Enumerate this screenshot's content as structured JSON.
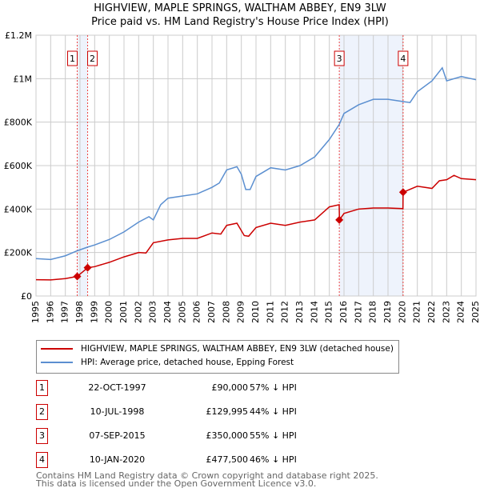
{
  "title": "HIGHVIEW, MAPLE SPRINGS, WALTHAM ABBEY, EN9 3LW",
  "subtitle": "Price paid vs. HM Land Registry's House Price Index (HPI)",
  "chart_data": {
    "type": "line",
    "xlim": [
      1995,
      2025
    ],
    "ylim": [
      0,
      1200000
    ],
    "y_ticks": [
      {
        "v": 0,
        "label": "£0"
      },
      {
        "v": 200000,
        "label": "£200K"
      },
      {
        "v": 400000,
        "label": "£400K"
      },
      {
        "v": 600000,
        "label": "£600K"
      },
      {
        "v": 800000,
        "label": "£800K"
      },
      {
        "v": 1000000,
        "label": "£1M"
      },
      {
        "v": 1200000,
        "label": "£1.2M"
      }
    ],
    "x_ticks": [
      "1995",
      "1996",
      "1997",
      "1998",
      "1999",
      "2000",
      "2001",
      "2002",
      "2003",
      "2004",
      "2005",
      "2006",
      "2007",
      "2008",
      "2009",
      "2010",
      "2011",
      "2012",
      "2013",
      "2014",
      "2015",
      "2016",
      "2017",
      "2018",
      "2019",
      "2020",
      "2021",
      "2022",
      "2023",
      "2024",
      "2025"
    ],
    "colors": {
      "property": "#cc0000",
      "hpi": "#5b8fd0",
      "shade": "#eef3fc"
    },
    "series": [
      {
        "name": "HIGHVIEW, MAPLE SPRINGS, WALTHAM ABBEY, EN9 3LW (detached house)",
        "color": "#cc0000",
        "x": [
          1995,
          1996,
          1997,
          1997.81,
          1998.52,
          1999,
          2000,
          2001,
          2002,
          2002.5,
          2003,
          2004,
          2005,
          2006,
          2007,
          2007.6,
          2008,
          2008.7,
          2009.2,
          2009.5,
          2010,
          2011,
          2012,
          2013,
          2014,
          2015,
          2015.67,
          2015.69,
          2016,
          2017,
          2018,
          2019,
          2020.02,
          2020.03,
          2021,
          2022,
          2022.5,
          2023,
          2023.5,
          2024,
          2025
        ],
        "y": [
          75000,
          74000,
          80000,
          90000,
          129995,
          135000,
          155000,
          180000,
          200000,
          198000,
          245000,
          258000,
          265000,
          265000,
          290000,
          285000,
          325000,
          335000,
          278000,
          275000,
          315000,
          335000,
          325000,
          340000,
          350000,
          410000,
          420000,
          350000,
          380000,
          400000,
          405000,
          405000,
          402000,
          477500,
          505000,
          495000,
          530000,
          535000,
          555000,
          540000,
          535000
        ]
      },
      {
        "name": "HPI: Average price, detached house, Epping Forest",
        "color": "#5b8fd0",
        "x": [
          1995,
          1996,
          1997,
          1997.81,
          1998.52,
          1999,
          2000,
          2001,
          2002,
          2002.7,
          2003,
          2003.5,
          2004,
          2005,
          2006,
          2007,
          2007.5,
          2008,
          2008.7,
          2009,
          2009.3,
          2009.6,
          2010,
          2011,
          2012,
          2013,
          2014,
          2015,
          2015.68,
          2016,
          2017,
          2018,
          2019,
          2020,
          2020.5,
          2021,
          2022,
          2022.7,
          2023,
          2024,
          2025
        ],
        "y": [
          172000,
          168000,
          185000,
          208000,
          225000,
          235000,
          260000,
          295000,
          340000,
          365000,
          350000,
          420000,
          450000,
          460000,
          470000,
          500000,
          520000,
          580000,
          595000,
          560000,
          490000,
          490000,
          550000,
          590000,
          580000,
          600000,
          640000,
          720000,
          790000,
          840000,
          880000,
          905000,
          905000,
          895000,
          890000,
          940000,
          990000,
          1050000,
          990000,
          1010000,
          995000
        ]
      }
    ],
    "shaded_ranges": [
      [
        1997.81,
        1998.52
      ],
      [
        2015.68,
        2020.03
      ]
    ],
    "markers": [
      {
        "id": "1",
        "x": 1997.81,
        "y": 90000
      },
      {
        "id": "2",
        "x": 1998.52,
        "y": 129995
      },
      {
        "id": "3",
        "x": 2015.68,
        "y": 350000
      },
      {
        "id": "4",
        "x": 2020.03,
        "y": 477500
      }
    ]
  },
  "legend": [
    "HIGHVIEW, MAPLE SPRINGS, WALTHAM ABBEY, EN9 3LW (detached house)",
    "HPI: Average price, detached house, Epping Forest"
  ],
  "transactions": [
    {
      "id": "1",
      "date": "22-OCT-1997",
      "price": "£90,000",
      "hpi": "57% ↓ HPI"
    },
    {
      "id": "2",
      "date": "10-JUL-1998",
      "price": "£129,995",
      "hpi": "44% ↓ HPI"
    },
    {
      "id": "3",
      "date": "07-SEP-2015",
      "price": "£350,000",
      "hpi": "55% ↓ HPI"
    },
    {
      "id": "4",
      "date": "10-JAN-2020",
      "price": "£477,500",
      "hpi": "46% ↓ HPI"
    }
  ],
  "footer": [
    "Contains HM Land Registry data © Crown copyright and database right 2025.",
    "This data is licensed under the Open Government Licence v3.0."
  ]
}
